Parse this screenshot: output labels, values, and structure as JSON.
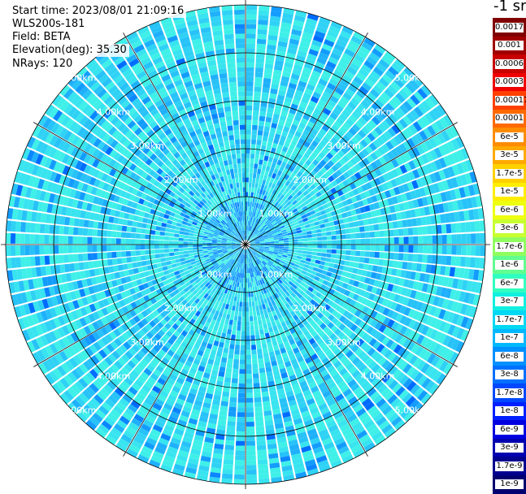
{
  "info": {
    "start_time": "Start time: 2023/08/01 21:09:16",
    "instrument": "WLS200s-181",
    "field": "Field: BETA",
    "elevation": "Elevation(deg): 35.30",
    "nrays": "NRays: 120"
  },
  "colorbar": {
    "unit_label": "-1 sr",
    "levels": [
      {
        "label": "0.0017",
        "color": "#800000"
      },
      {
        "label": "0.001",
        "color": "#a00000"
      },
      {
        "label": "0.0006",
        "color": "#c80000"
      },
      {
        "label": "0.0003",
        "color": "#f00000"
      },
      {
        "label": "0.00017",
        "color": "#ff4000"
      },
      {
        "label": "0.0001",
        "color": "#ff6a00"
      },
      {
        "label": "6e-5",
        "color": "#ff8c00"
      },
      {
        "label": "3e-5",
        "color": "#ffaa00"
      },
      {
        "label": "1.7e-5",
        "color": "#ffd000"
      },
      {
        "label": "1e-5",
        "color": "#ffee00"
      },
      {
        "label": "6e-6",
        "color": "#eeff10"
      },
      {
        "label": "3e-6",
        "color": "#c8ff30"
      },
      {
        "label": "1.7e-6",
        "color": "#90ff60"
      },
      {
        "label": "1e-6",
        "color": "#60ff90"
      },
      {
        "label": "6e-7",
        "color": "#30ffc0"
      },
      {
        "label": "3e-7",
        "color": "#10f0e0"
      },
      {
        "label": "1.7e-7",
        "color": "#00d8f4"
      },
      {
        "label": "1e-7",
        "color": "#00b8ff"
      },
      {
        "label": "6e-8",
        "color": "#0090ff"
      },
      {
        "label": "3e-8",
        "color": "#0070ff"
      },
      {
        "label": "1.7e-8",
        "color": "#0048ff"
      },
      {
        "label": "1e-8",
        "color": "#0020ff"
      },
      {
        "label": "6e-9",
        "color": "#0000e0"
      },
      {
        "label": "3e-9",
        "color": "#0000b0"
      },
      {
        "label": "1.7e-9",
        "color": "#000090"
      },
      {
        "label": "1e-9",
        "color": "#000070"
      }
    ]
  },
  "chart_data": {
    "type": "heatmap",
    "field": "BETA",
    "rays": 120,
    "range_rings_km": [
      1,
      2,
      3,
      4,
      5
    ],
    "ring_labels": [
      "1.00km",
      "2.00km",
      "3.00km",
      "4.00km",
      "5.00km"
    ],
    "radial_grid_deg": [
      0,
      30,
      60,
      90,
      120,
      150,
      180,
      210,
      240,
      270,
      300,
      330
    ],
    "dominant_value_range": [
      "1e-8",
      "6e-7"
    ]
  }
}
